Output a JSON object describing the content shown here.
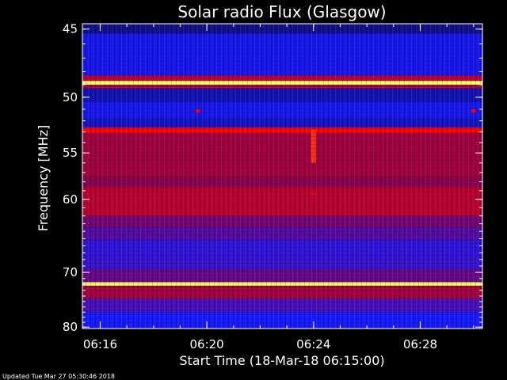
{
  "chart_data": {
    "type": "heatmap",
    "title": "Solar radio Flux (Glasgow)",
    "xlabel": "Start Time (18-Mar-18 06:15:00)",
    "ylabel": "Frequency [MHz]",
    "x_range": [
      "06:15:20",
      "06:30:20"
    ],
    "x_ticks": [
      "06:16",
      "06:20",
      "06:24",
      "06:28"
    ],
    "y_range": [
      45,
      80
    ],
    "y_ticks": [
      45,
      50,
      55,
      60,
      70,
      80
    ],
    "y_scale": "reciprocal",
    "colormap": [
      "#0d0d6e",
      "#1a1aff",
      "#8a0050",
      "#ff0000",
      "#ffff66"
    ],
    "footer": "Updated Tue Mar 27 05:30:46 2018",
    "bands": [
      {
        "f_from": 44.6,
        "f_to": 45.3,
        "level": 0.05
      },
      {
        "f_from": 45.3,
        "f_to": 48.3,
        "level": 0.22
      },
      {
        "f_from": 48.3,
        "f_to": 48.7,
        "level": 0.6
      },
      {
        "f_from": 48.7,
        "f_to": 49.0,
        "level": 1.0
      },
      {
        "f_from": 49.0,
        "f_to": 49.3,
        "level": 0.55
      },
      {
        "f_from": 49.3,
        "f_to": 50.4,
        "level": 0.12
      },
      {
        "f_from": 50.4,
        "f_to": 51.8,
        "level": 0.22
      },
      {
        "f_from": 51.8,
        "f_to": 52.6,
        "level": 0.15
      },
      {
        "f_from": 52.6,
        "f_to": 53.1,
        "level": 0.75
      },
      {
        "f_from": 53.1,
        "f_to": 57.5,
        "level": 0.55
      },
      {
        "f_from": 57.5,
        "f_to": 58.6,
        "level": 0.5
      },
      {
        "f_from": 58.6,
        "f_to": 62.0,
        "level": 0.6
      },
      {
        "f_from": 62.0,
        "f_to": 63.5,
        "level": 0.45
      },
      {
        "f_from": 63.5,
        "f_to": 65.2,
        "level": 0.38
      },
      {
        "f_from": 65.2,
        "f_to": 67.5,
        "level": 0.3
      },
      {
        "f_from": 67.5,
        "f_to": 69.5,
        "level": 0.32
      },
      {
        "f_from": 69.5,
        "f_to": 71.6,
        "level": 0.42
      },
      {
        "f_from": 71.6,
        "f_to": 72.2,
        "level": 1.0
      },
      {
        "f_from": 72.2,
        "f_to": 74.5,
        "level": 0.55
      },
      {
        "f_from": 74.5,
        "f_to": 77.0,
        "level": 0.35
      },
      {
        "f_from": 77.0,
        "f_to": 80.3,
        "level": 0.25
      }
    ],
    "events": [
      {
        "time": "06:24",
        "f_from": 52.8,
        "f_to": 56.0,
        "level": 0.8
      },
      {
        "time": "06:24",
        "f_from": 59.2,
        "f_to": 59.5,
        "level": 0.7
      },
      {
        "time": "06:19:40",
        "f_from": 51.0,
        "f_to": 51.3,
        "level": 0.7
      },
      {
        "time": "06:30",
        "f_from": 51.0,
        "f_to": 51.3,
        "level": 0.7
      }
    ]
  }
}
